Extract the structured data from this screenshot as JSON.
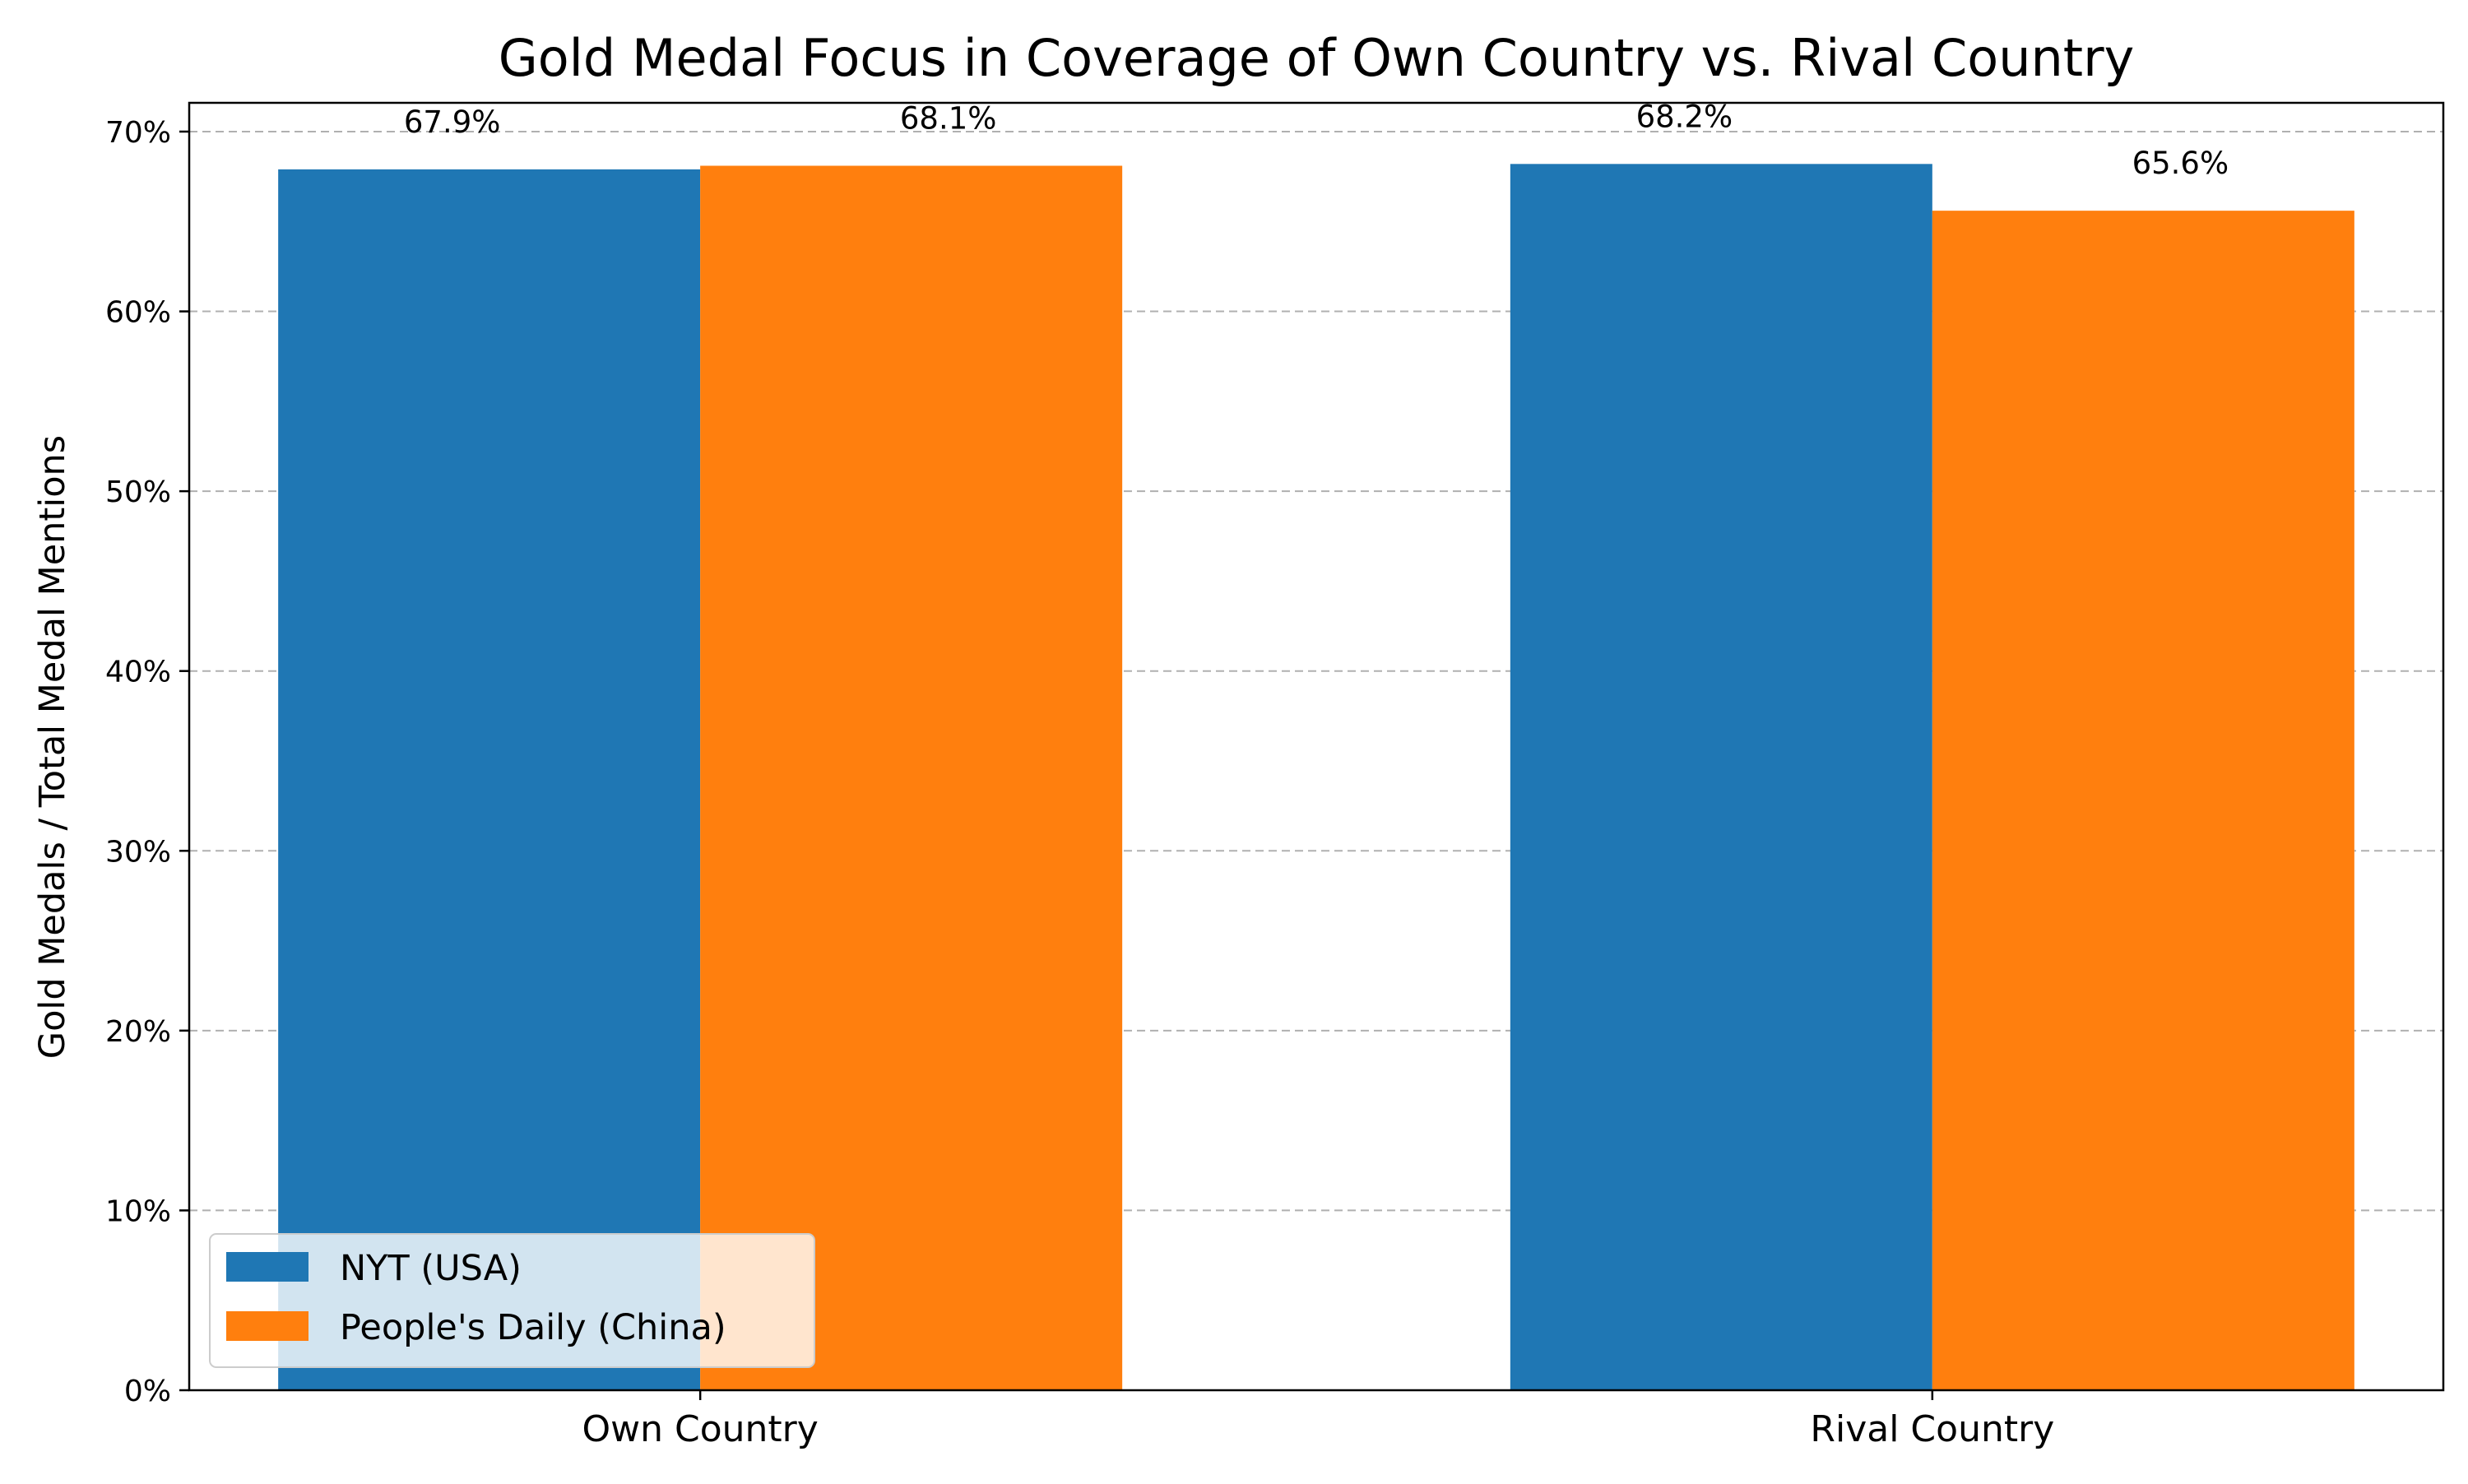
{
  "chart_data": {
    "type": "bar",
    "title": "Gold Medal Focus in Coverage of Own Country vs. Rival Country",
    "xlabel": "",
    "ylabel": "Gold Medals / Total Medal Mentions",
    "categories": [
      "Own Country",
      "Rival Country"
    ],
    "series": [
      {
        "name": "NYT (USA)",
        "values": [
          67.9,
          68.2
        ],
        "labels": [
          "67.9%",
          "68.2%"
        ],
        "color": "#1f77b4"
      },
      {
        "name": "People's Daily (China)",
        "values": [
          68.1,
          65.6
        ],
        "labels": [
          "68.1%",
          "65.6%"
        ],
        "color": "#ff7f0e"
      }
    ],
    "ylim": [
      0,
      71.6
    ],
    "yticks": [
      0,
      10,
      20,
      30,
      40,
      50,
      60,
      70
    ],
    "ytick_labels": [
      "0%",
      "10%",
      "20%",
      "30%",
      "40%",
      "50%",
      "60%",
      "70%"
    ],
    "grid": "y-dashed",
    "legend_position": "lower-left"
  }
}
